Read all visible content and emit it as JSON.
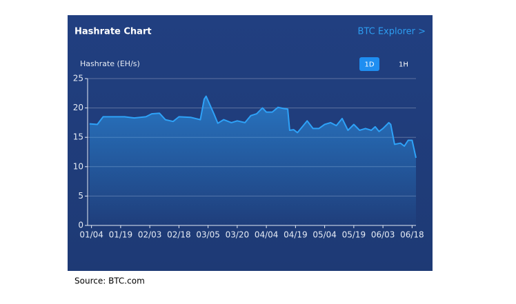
{
  "chart_data": {
    "type": "area",
    "title": "Hashrate Chart",
    "y_label": "Hashrate (EH/s)",
    "x": [
      "01/03",
      "01/07",
      "01/10",
      "01/16",
      "01/21",
      "01/26",
      "02/01",
      "02/04",
      "02/08",
      "02/11",
      "02/15",
      "02/18",
      "02/24",
      "03/01",
      "03/03",
      "03/04",
      "03/06",
      "03/08",
      "03/10",
      "03/13",
      "03/17",
      "03/20",
      "03/24",
      "03/27",
      "03/30",
      "04/02",
      "04/04",
      "04/07",
      "04/10",
      "04/13",
      "04/15",
      "04/16",
      "04/18",
      "04/20",
      "04/22",
      "04/25",
      "04/28",
      "05/01",
      "05/04",
      "05/07",
      "05/10",
      "05/13",
      "05/16",
      "05/19",
      "05/22",
      "05/25",
      "05/28",
      "05/30",
      "06/01",
      "06/03",
      "06/06",
      "06/07",
      "06/09",
      "06/12",
      "06/14",
      "06/16",
      "06/18",
      "06/20"
    ],
    "series": [
      {
        "name": "Hashrate",
        "color": "#2ea2f8",
        "values": [
          17.3,
          17.2,
          18.5,
          18.5,
          18.5,
          18.3,
          18.5,
          19.0,
          19.1,
          18.0,
          17.7,
          18.5,
          18.4,
          18.0,
          21.5,
          22.0,
          20.5,
          19.0,
          17.4,
          18.0,
          17.5,
          17.8,
          17.5,
          18.7,
          19.0,
          20.0,
          19.3,
          19.3,
          20.1,
          19.9,
          19.8,
          16.2,
          16.3,
          15.8,
          16.6,
          17.8,
          16.5,
          16.5,
          17.2,
          17.5,
          17.0,
          18.2,
          16.2,
          17.2,
          16.2,
          16.5,
          16.2,
          16.8,
          16.0,
          16.5,
          17.5,
          17.2,
          13.8,
          14.0,
          13.5,
          14.5,
          14.5,
          11.5
        ]
      }
    ],
    "xlim": [
      "01/02",
      "06/20"
    ],
    "xticks": [
      "01/04",
      "01/19",
      "02/03",
      "02/18",
      "03/05",
      "03/20",
      "04/04",
      "04/19",
      "05/04",
      "05/19",
      "06/03",
      "06/18"
    ],
    "ylim": [
      0,
      25
    ],
    "yticks": [
      0,
      5,
      10,
      15,
      20,
      25
    ],
    "grid": true
  },
  "link": "BTC Explorer >",
  "buttons": [
    "1D",
    "1H"
  ],
  "source": "Source: BTC.com"
}
